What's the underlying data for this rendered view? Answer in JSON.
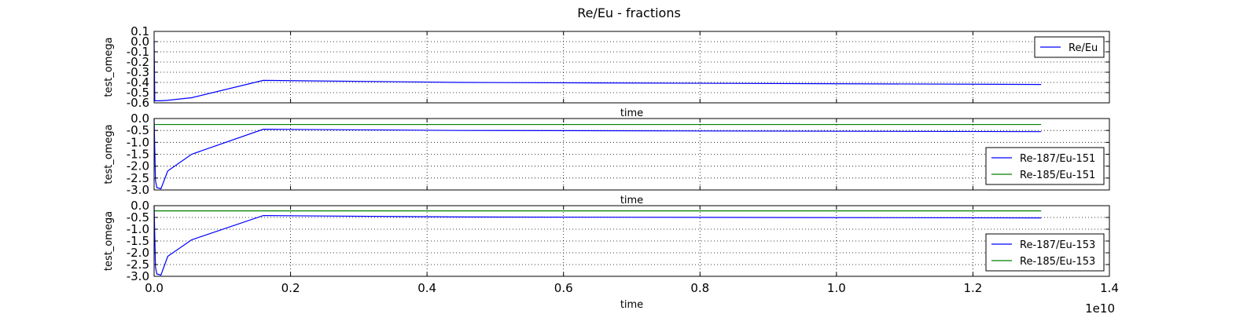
{
  "chart_data": {
    "title": "Re/Eu - fractions",
    "x_offset_label": "1e10",
    "x_ticks": [
      0.0,
      0.2,
      0.4,
      0.6,
      0.8,
      1.0,
      1.2,
      1.4
    ],
    "x_tick_labels": [
      "0.0",
      "0.2",
      "0.4",
      "0.6",
      "0.8",
      "1.0",
      "1.2",
      "1.4"
    ],
    "panels": [
      {
        "type": "line",
        "xlabel": "time",
        "ylabel": "test_omega",
        "xlim": [
          0.0,
          1.4
        ],
        "ylim": [
          -0.6,
          0.1
        ],
        "y_tick_labels": [
          "0.1",
          "0.0",
          "-0.1",
          "-0.2",
          "-0.3",
          "-0.4",
          "-0.5",
          "-0.6"
        ],
        "y_ticks": [
          0.1,
          0.0,
          -0.1,
          -0.2,
          -0.3,
          -0.4,
          -0.5,
          -0.6
        ],
        "grid": true,
        "legend_position": "top-right",
        "series": [
          {
            "name": "Re/Eu",
            "color": "#0000ff",
            "x": [
              0.0,
              0.001,
              0.01,
              0.02,
              0.055,
              0.16,
              0.45,
              1.3
            ],
            "y": [
              0.0,
              -0.58,
              -0.58,
              -0.575,
              -0.55,
              -0.38,
              -0.4,
              -0.42
            ]
          }
        ]
      },
      {
        "type": "line",
        "xlabel": "time",
        "ylabel": "test_omega",
        "xlim": [
          0.0,
          1.4
        ],
        "ylim": [
          -3.0,
          0.0
        ],
        "y_tick_labels": [
          "0.0",
          "-0.5",
          "-1.0",
          "-1.5",
          "-2.0",
          "-2.5",
          "-3.0"
        ],
        "y_ticks": [
          0.0,
          -0.5,
          -1.0,
          -1.5,
          -2.0,
          -2.5,
          -3.0
        ],
        "grid": true,
        "legend_position": "bottom-right",
        "series": [
          {
            "name": "Re-187/Eu-151",
            "color": "#0000ff",
            "x": [
              0.0,
              0.002,
              0.004,
              0.01,
              0.02,
              0.055,
              0.16,
              0.45,
              1.3
            ],
            "y": [
              0.0,
              -2.6,
              -2.9,
              -2.95,
              -2.2,
              -1.5,
              -0.45,
              -0.5,
              -0.55
            ]
          },
          {
            "name": "Re-185/Eu-151",
            "color": "#008000",
            "x": [
              0.0,
              1.3
            ],
            "y": [
              -0.25,
              -0.25
            ]
          }
        ]
      },
      {
        "type": "line",
        "xlabel": "time",
        "ylabel": "test_omega",
        "xlim": [
          0.0,
          1.4
        ],
        "ylim": [
          -3.0,
          0.0
        ],
        "y_tick_labels": [
          "0.0",
          "-0.5",
          "-1.0",
          "-1.5",
          "-2.0",
          "-2.5",
          "-3.0"
        ],
        "y_ticks": [
          0.0,
          -0.5,
          -1.0,
          -1.5,
          -2.0,
          -2.5,
          -3.0
        ],
        "grid": true,
        "legend_position": "bottom-right",
        "series": [
          {
            "name": "Re-187/Eu-153",
            "color": "#0000ff",
            "x": [
              0.0,
              0.002,
              0.004,
              0.01,
              0.02,
              0.055,
              0.16,
              0.45,
              1.3
            ],
            "y": [
              0.0,
              -2.6,
              -2.9,
              -2.95,
              -2.15,
              -1.45,
              -0.42,
              -0.48,
              -0.52
            ]
          },
          {
            "name": "Re-185/Eu-153",
            "color": "#008000",
            "x": [
              0.0,
              1.3
            ],
            "y": [
              -0.22,
              -0.22
            ]
          }
        ]
      }
    ]
  }
}
